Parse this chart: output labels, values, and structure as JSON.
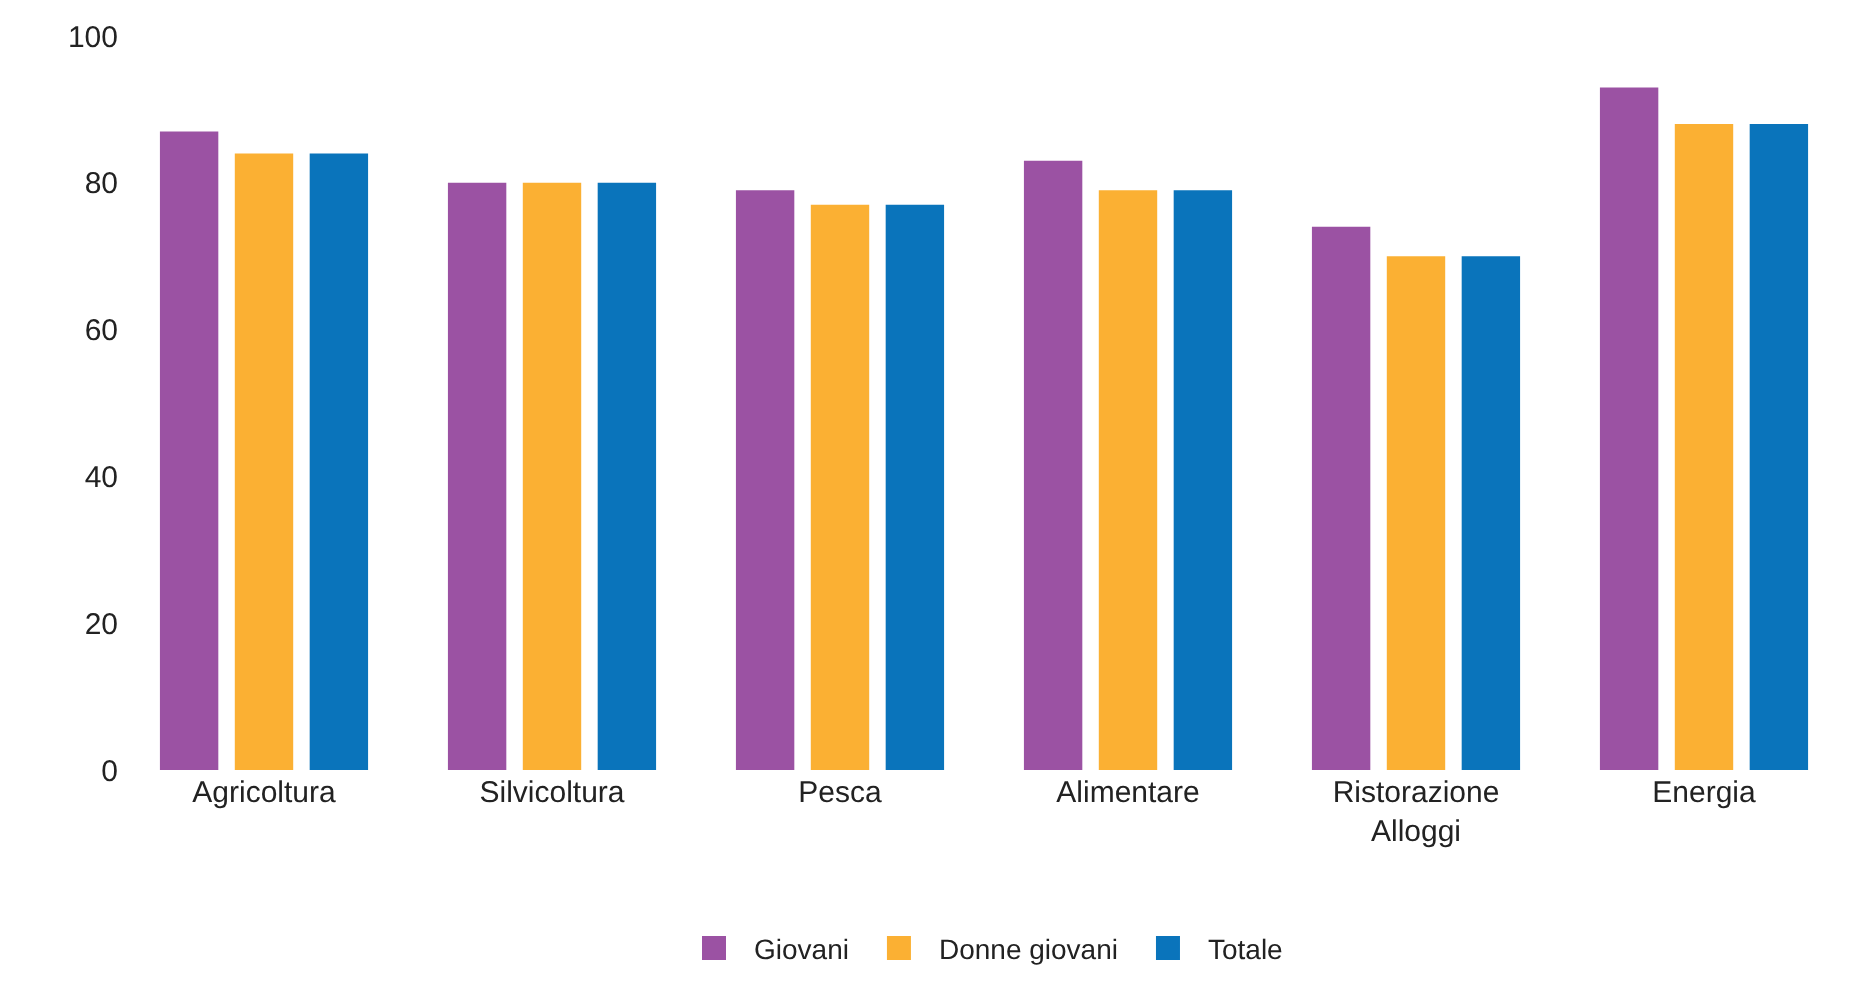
{
  "chart_data": {
    "type": "bar",
    "categories": [
      "Agricoltura",
      "Silvicoltura",
      "Pesca",
      "Alimentare",
      "Ristorazione\nAlloggi",
      "Energia"
    ],
    "series": [
      {
        "name": "Giovani",
        "color": "#9b52a3",
        "values": [
          87,
          80,
          79,
          83,
          74,
          93
        ]
      },
      {
        "name": "Donne giovani",
        "color": "#fbb033",
        "values": [
          84,
          80,
          77,
          79,
          70,
          88
        ]
      },
      {
        "name": "Totale",
        "color": "#0a74bb",
        "values": [
          84,
          80,
          77,
          79,
          70,
          88
        ]
      }
    ],
    "ylim": [
      0,
      100
    ],
    "yticks": [
      0,
      20,
      40,
      60,
      80,
      100
    ],
    "legend": "bottom"
  }
}
